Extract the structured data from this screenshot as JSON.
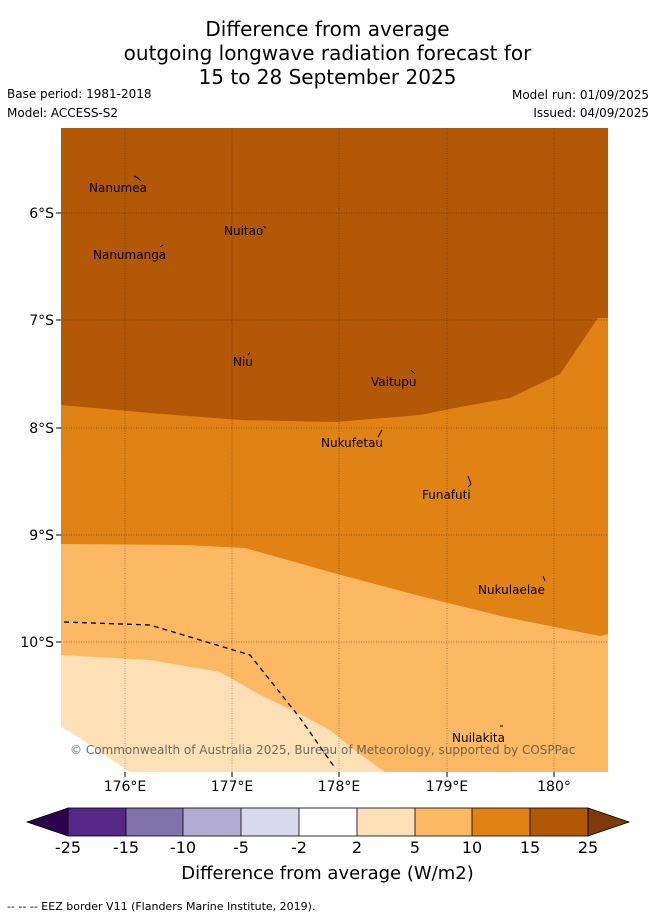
{
  "header": {
    "title_line1": "Difference from average",
    "title_line2": "outgoing longwave radiation forecast for",
    "title_line3": "15 to 28 September 2025",
    "base_period": "Base period: 1981-2018",
    "model": "Model: ACCESS-S2",
    "model_run": "Model run: 01/09/2025",
    "issued": "Issued: 04/09/2025"
  },
  "map": {
    "x_ticks": [
      "176°E",
      "177°E",
      "178°E",
      "179°E",
      "180°"
    ],
    "y_ticks": [
      "6°S",
      "7°S",
      "8°S",
      "9°S",
      "10°S"
    ],
    "places": [
      {
        "name": "Nanumea"
      },
      {
        "name": "Nuitao"
      },
      {
        "name": "Nanumanga"
      },
      {
        "name": "Niu"
      },
      {
        "name": "Vaitupu"
      },
      {
        "name": "Nukufetau"
      },
      {
        "name": "Funafuti"
      },
      {
        "name": "Nukulaelae"
      },
      {
        "name": "Nuilakita"
      }
    ],
    "copyright": "© Commonwealth of Australia 2025, Bureau of Meteorology, supported by COSPPac",
    "colors": {
      "15_to_25": "#b35806",
      "10_to_15": "#e08214",
      "5_to_10": "#fdb863",
      "2_to_5": "#fee0b6"
    }
  },
  "colorbar": {
    "ticks": [
      "-25",
      "-15",
      "-10",
      "-5",
      "-2",
      "2",
      "5",
      "10",
      "15",
      "25"
    ],
    "colors": [
      "#2d004b",
      "#542788",
      "#8073ac",
      "#b2abd2",
      "#d8daeb",
      "#ffffff",
      "#fee0b6",
      "#fdb863",
      "#e08214",
      "#b35806",
      "#7f3b08"
    ],
    "title": "Difference from average (W/m2)"
  },
  "footer": {
    "legend_line": "--  --  -- EEZ border V11 (Flanders Marine Institute, 2019)."
  }
}
